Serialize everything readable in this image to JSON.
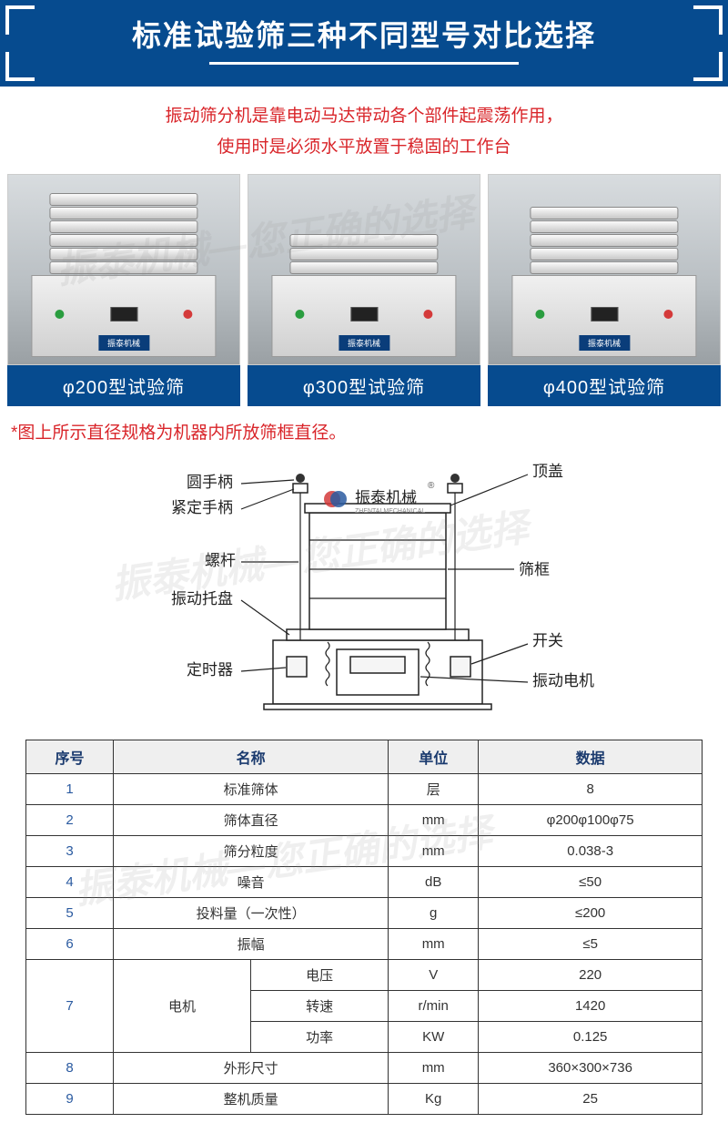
{
  "header": {
    "title": "标准试验筛三种不同型号对比选择"
  },
  "intro": {
    "line1": "振动筛分机是靠电动马达带动各个部件起震荡作用，",
    "line2": "使用时是必须水平放置于稳固的工作台"
  },
  "products": [
    {
      "label": "φ200型试验筛",
      "rings": 6,
      "plate": "振泰机械"
    },
    {
      "label": "φ300型试验筛",
      "rings": 3,
      "plate": "振泰机械"
    },
    {
      "label": "φ400型试验筛",
      "rings": 5,
      "plate": "振泰机械"
    }
  ],
  "note": "*图上所示直径规格为机器内所放筛框直径。",
  "diagram": {
    "labels": {
      "top_cover": "顶盖",
      "round_handle": "圆手柄",
      "tight_handle": "紧定手柄",
      "screw_rod": "螺杆",
      "vib_tray": "振动托盘",
      "timer": "定时器",
      "sieve_frame": "筛框",
      "switch": "开关",
      "vib_motor": "振动电机"
    },
    "brand": "振泰机械",
    "brand_en": "ZHENTAI MECHANICAL"
  },
  "spec_table": {
    "headers": [
      "序号",
      "名称",
      "单位",
      "数据"
    ],
    "rows": [
      {
        "seq": "1",
        "name": "标准筛体",
        "unit": "层",
        "data": "8",
        "span": 2
      },
      {
        "seq": "2",
        "name": "筛体直径",
        "unit": "mm",
        "data": "φ200φ100φ75",
        "span": 2
      },
      {
        "seq": "3",
        "name": "筛分粒度",
        "unit": "mm",
        "data": "0.038-3",
        "span": 2
      },
      {
        "seq": "4",
        "name": "噪音",
        "unit": "dB",
        "data": "≤50",
        "span": 2
      },
      {
        "seq": "5",
        "name": "投料量（一次性）",
        "unit": "g",
        "data": "≤200",
        "span": 2
      },
      {
        "seq": "6",
        "name": "振幅",
        "unit": "mm",
        "data": "≤5",
        "span": 2
      },
      {
        "seq": "7",
        "name_group": "电机",
        "subrows": [
          {
            "sub": "电压",
            "unit": "V",
            "data": "220"
          },
          {
            "sub": "转速",
            "unit": "r/min",
            "data": "1420"
          },
          {
            "sub": "功率",
            "unit": "KW",
            "data": "0.125"
          }
        ]
      },
      {
        "seq": "8",
        "name": "外形尺寸",
        "unit": "mm",
        "data": "360×300×736",
        "span": 2
      },
      {
        "seq": "9",
        "name": "整机质量",
        "unit": "Kg",
        "data": "25",
        "span": 2
      }
    ]
  },
  "colors": {
    "primary": "#064b8f",
    "accent_red": "#d9252a",
    "text": "#333333",
    "table_header_bg": "#efefef",
    "table_header_text": "#1a3a6e"
  },
  "watermark": "振泰机械—您正确的选择"
}
